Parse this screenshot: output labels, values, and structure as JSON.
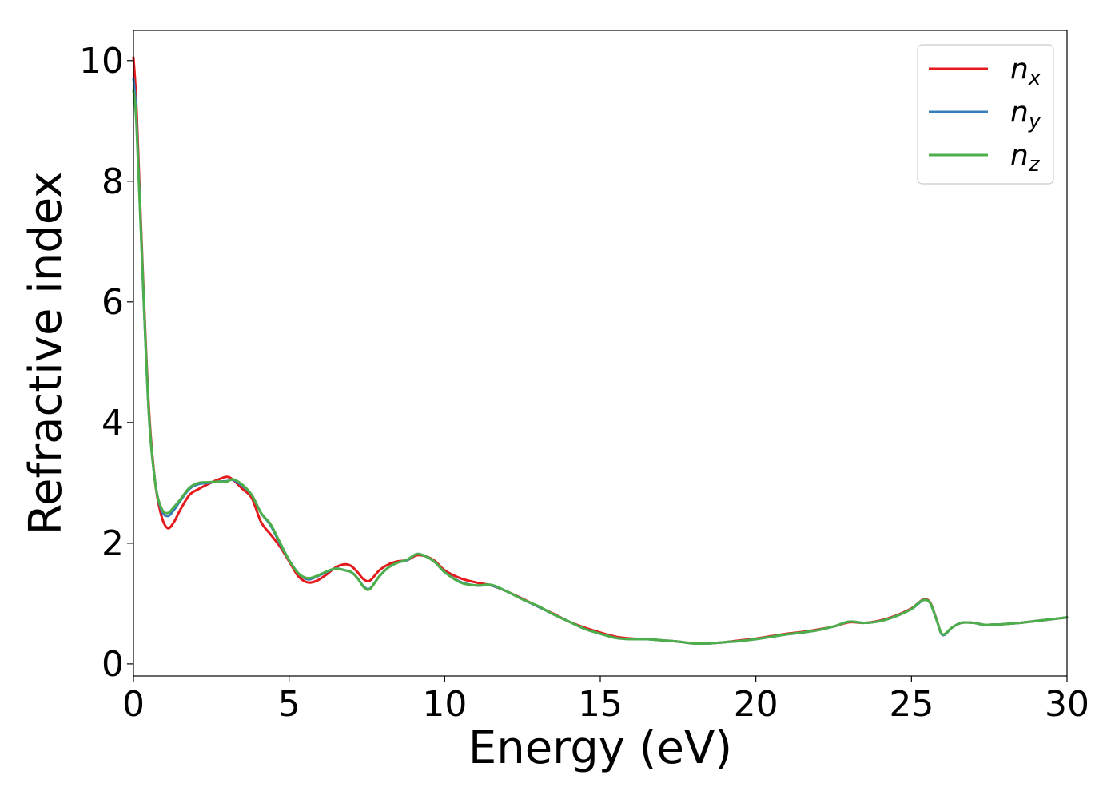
{
  "chart_data": {
    "type": "line",
    "title": "",
    "xlabel": "Energy (eV)",
    "ylabel": "Refractive index",
    "xlim": [
      0,
      30
    ],
    "ylim": [
      -0.2,
      10.5
    ],
    "xticks": [
      0,
      5,
      10,
      15,
      20,
      25,
      30
    ],
    "yticks": [
      0,
      2,
      4,
      6,
      8,
      10
    ],
    "grid": false,
    "legend_position": "top-right",
    "series": [
      {
        "name": "n_x",
        "label_main": "n",
        "label_sub": "x",
        "color": "#e41a1c",
        "x": [
          0,
          0.1,
          0.3,
          0.5,
          0.7,
          0.9,
          1.1,
          1.3,
          1.5,
          1.8,
          2.1,
          2.4,
          2.7,
          3.0,
          3.2,
          3.5,
          3.8,
          4.1,
          4.4,
          4.7,
          5.0,
          5.3,
          5.6,
          5.9,
          6.2,
          6.5,
          6.8,
          7.0,
          7.2,
          7.4,
          7.6,
          7.9,
          8.2,
          8.5,
          8.8,
          9.1,
          9.4,
          9.7,
          10.0,
          10.5,
          11.0,
          11.5,
          12.0,
          12.5,
          13.0,
          13.5,
          14.0,
          14.5,
          15.0,
          15.5,
          16.0,
          16.5,
          17.0,
          17.5,
          18.0,
          18.5,
          19.0,
          19.5,
          20.0,
          20.5,
          21.0,
          21.5,
          22.0,
          22.5,
          23.0,
          23.5,
          24.0,
          24.5,
          25.0,
          25.2,
          25.4,
          25.6,
          25.8,
          26.0,
          26.3,
          26.6,
          27.0,
          27.3,
          27.6,
          28.0,
          28.5,
          29.0,
          29.5,
          30.0
        ],
        "y": [
          10.05,
          9.2,
          6.5,
          4.2,
          3.0,
          2.45,
          2.25,
          2.35,
          2.55,
          2.8,
          2.9,
          2.98,
          3.05,
          3.1,
          3.05,
          2.9,
          2.75,
          2.35,
          2.15,
          1.95,
          1.7,
          1.45,
          1.35,
          1.38,
          1.48,
          1.6,
          1.65,
          1.62,
          1.52,
          1.4,
          1.38,
          1.55,
          1.65,
          1.7,
          1.72,
          1.8,
          1.78,
          1.7,
          1.55,
          1.42,
          1.35,
          1.3,
          1.2,
          1.08,
          0.95,
          0.83,
          0.7,
          0.6,
          0.52,
          0.45,
          0.42,
          0.41,
          0.39,
          0.37,
          0.34,
          0.34,
          0.36,
          0.39,
          0.42,
          0.46,
          0.5,
          0.53,
          0.57,
          0.62,
          0.69,
          0.68,
          0.72,
          0.8,
          0.92,
          1.0,
          1.07,
          1.02,
          0.75,
          0.48,
          0.6,
          0.68,
          0.68,
          0.65,
          0.65,
          0.66,
          0.68,
          0.71,
          0.74,
          0.77
        ]
      },
      {
        "name": "n_y",
        "label_main": "n",
        "label_sub": "y",
        "color": "#377eb8",
        "x": [
          0,
          0.1,
          0.3,
          0.5,
          0.7,
          0.9,
          1.1,
          1.3,
          1.5,
          1.8,
          2.1,
          2.4,
          2.7,
          3.0,
          3.2,
          3.5,
          3.8,
          4.1,
          4.4,
          4.7,
          5.0,
          5.3,
          5.6,
          5.9,
          6.2,
          6.5,
          6.8,
          7.0,
          7.2,
          7.4,
          7.6,
          7.9,
          8.2,
          8.5,
          8.8,
          9.1,
          9.4,
          9.7,
          10.0,
          10.5,
          11.0,
          11.5,
          12.0,
          12.5,
          13.0,
          13.5,
          14.0,
          14.5,
          15.0,
          15.5,
          16.0,
          16.5,
          17.0,
          17.5,
          18.0,
          18.5,
          19.0,
          19.5,
          20.0,
          20.5,
          21.0,
          21.5,
          22.0,
          22.5,
          23.0,
          23.5,
          24.0,
          24.5,
          25.0,
          25.2,
          25.4,
          25.6,
          25.8,
          26.0,
          26.3,
          26.6,
          27.0,
          27.3,
          27.6,
          28.0,
          28.5,
          29.0,
          29.5,
          30.0
        ],
        "y": [
          9.7,
          9.0,
          6.4,
          4.1,
          3.0,
          2.55,
          2.45,
          2.55,
          2.7,
          2.9,
          2.98,
          3.0,
          3.02,
          3.03,
          3.05,
          2.95,
          2.8,
          2.5,
          2.3,
          2.0,
          1.72,
          1.5,
          1.4,
          1.45,
          1.52,
          1.58,
          1.55,
          1.52,
          1.42,
          1.28,
          1.25,
          1.45,
          1.6,
          1.68,
          1.72,
          1.82,
          1.78,
          1.68,
          1.52,
          1.36,
          1.3,
          1.3,
          1.2,
          1.07,
          0.95,
          0.82,
          0.7,
          0.58,
          0.5,
          0.43,
          0.41,
          0.41,
          0.39,
          0.37,
          0.34,
          0.34,
          0.36,
          0.38,
          0.41,
          0.45,
          0.49,
          0.52,
          0.56,
          0.62,
          0.7,
          0.68,
          0.71,
          0.79,
          0.91,
          0.99,
          1.06,
          1.01,
          0.74,
          0.48,
          0.6,
          0.68,
          0.68,
          0.65,
          0.65,
          0.66,
          0.68,
          0.71,
          0.74,
          0.77
        ]
      },
      {
        "name": "n_z",
        "label_main": "n",
        "label_sub": "z",
        "color": "#4daf4a",
        "x": [
          0,
          0.1,
          0.3,
          0.5,
          0.7,
          0.9,
          1.1,
          1.3,
          1.5,
          1.8,
          2.1,
          2.4,
          2.7,
          3.0,
          3.2,
          3.5,
          3.8,
          4.1,
          4.4,
          4.7,
          5.0,
          5.3,
          5.6,
          5.9,
          6.2,
          6.5,
          6.8,
          7.0,
          7.2,
          7.4,
          7.6,
          7.9,
          8.2,
          8.5,
          8.8,
          9.1,
          9.4,
          9.7,
          10.0,
          10.5,
          11.0,
          11.5,
          12.0,
          12.5,
          13.0,
          13.5,
          14.0,
          14.5,
          15.0,
          15.5,
          16.0,
          16.5,
          17.0,
          17.5,
          18.0,
          18.5,
          19.0,
          19.5,
          20.0,
          20.5,
          21.0,
          21.5,
          22.0,
          22.5,
          23.0,
          23.5,
          24.0,
          24.5,
          25.0,
          25.2,
          25.4,
          25.6,
          25.8,
          26.0,
          26.3,
          26.6,
          27.0,
          27.3,
          27.6,
          28.0,
          28.5,
          29.0,
          29.5,
          30.0
        ],
        "y": [
          9.5,
          8.9,
          6.4,
          4.1,
          3.0,
          2.58,
          2.5,
          2.6,
          2.72,
          2.92,
          3.0,
          3.01,
          3.02,
          3.02,
          3.06,
          2.97,
          2.8,
          2.5,
          2.32,
          2.02,
          1.72,
          1.5,
          1.42,
          1.46,
          1.53,
          1.58,
          1.55,
          1.52,
          1.42,
          1.27,
          1.24,
          1.45,
          1.6,
          1.68,
          1.73,
          1.82,
          1.78,
          1.68,
          1.52,
          1.35,
          1.3,
          1.31,
          1.2,
          1.07,
          0.96,
          0.82,
          0.7,
          0.58,
          0.5,
          0.43,
          0.41,
          0.41,
          0.39,
          0.37,
          0.34,
          0.34,
          0.36,
          0.38,
          0.41,
          0.45,
          0.49,
          0.52,
          0.56,
          0.62,
          0.7,
          0.68,
          0.71,
          0.79,
          0.91,
          1.0,
          1.06,
          1.01,
          0.74,
          0.49,
          0.6,
          0.68,
          0.68,
          0.65,
          0.65,
          0.66,
          0.68,
          0.71,
          0.74,
          0.77
        ]
      }
    ]
  }
}
